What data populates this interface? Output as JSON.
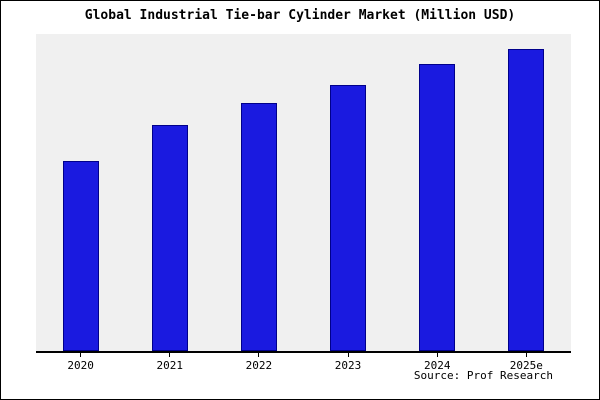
{
  "chart_data": {
    "type": "bar",
    "title": "Global Industrial Tie-bar Cylinder Market (Million USD)",
    "categories": [
      "2020",
      "2021",
      "2022",
      "2023",
      "2024",
      "2025e"
    ],
    "values": [
      63,
      75,
      82,
      88,
      95,
      100
    ],
    "xlabel": "",
    "ylabel": "",
    "ylim": [
      0,
      105
    ],
    "grid": false,
    "legend_position": "none",
    "bar_color": "#1a1ae0",
    "bar_edge_color": "#00008b",
    "plot_background": "#f0f0f0",
    "source": "Source: Prof Research"
  }
}
